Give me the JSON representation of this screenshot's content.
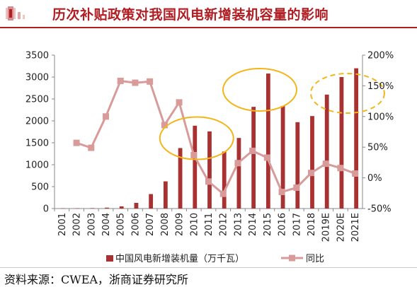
{
  "header": {
    "title": "历次补贴政策对我国风电新增装机容量的影响"
  },
  "footer": {
    "source": "资料来源：CWEA，浙商证券研究所"
  },
  "colors": {
    "bar": "#a83232",
    "line": "#d99a9a",
    "highlight": "#f3b51a",
    "title": "#b01e23"
  },
  "chart_data": {
    "type": "bar+line",
    "categories": [
      "2001",
      "2002",
      "2003",
      "2004",
      "2005",
      "2006",
      "2007",
      "2008",
      "2009",
      "2010",
      "2011",
      "2012",
      "2013",
      "2014",
      "2015",
      "2016",
      "2017",
      "2018",
      "2019E",
      "2020E",
      "2021E"
    ],
    "series": [
      {
        "name": "中国风电新增装机量（万千瓦）",
        "type": "bar",
        "axis": "left",
        "values": [
          5,
          7,
          10,
          20,
          50,
          130,
          330,
          620,
          1380,
          1890,
          1760,
          1300,
          1610,
          2320,
          3080,
          2340,
          1970,
          2110,
          2600,
          3000,
          3200
        ]
      },
      {
        "name": "同比",
        "type": "line",
        "axis": "right",
        "values": [
          null,
          57,
          49,
          100,
          158,
          155,
          157,
          86,
          123,
          37,
          -6,
          -26,
          24,
          44,
          33,
          -23,
          -16,
          8,
          23,
          16,
          7
        ]
      }
    ],
    "yleft": {
      "min": 0,
      "max": 3500,
      "ticks": [
        "0",
        "500",
        "1000",
        "1500",
        "2000",
        "2500",
        "3000",
        "3500"
      ]
    },
    "yright": {
      "min": -50,
      "max": 200,
      "ticks": [
        "-50%",
        "0%",
        "50%",
        "100%",
        "150%",
        "200%"
      ]
    },
    "highlight_circles": [
      "2009-2011",
      "2014-2015",
      "2019E-2021E"
    ]
  }
}
